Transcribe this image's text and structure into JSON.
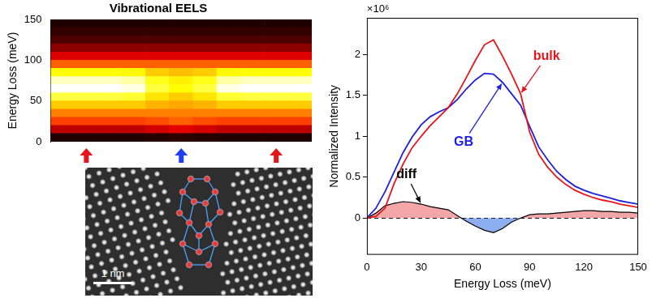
{
  "chart_data": [
    {
      "type": "heatmap",
      "title": "Vibrational EELS",
      "y_label": "Energy Loss (meV)",
      "categories": [
        null,
        null,
        null,
        null,
        null,
        null,
        null,
        null,
        null,
        null,
        null
      ],
      "y_bins": [
        0,
        10,
        20,
        30,
        40,
        50,
        60,
        70,
        80,
        90,
        100,
        110,
        120,
        130,
        140,
        150
      ],
      "cells": [
        [
          0.05,
          0.05,
          0.05,
          0.05,
          0.06,
          0.07,
          0.06,
          0.05,
          0.05,
          0.05,
          0.05
        ],
        [
          0.3,
          0.3,
          0.3,
          0.3,
          0.33,
          0.36,
          0.33,
          0.3,
          0.3,
          0.3,
          0.3
        ],
        [
          0.5,
          0.5,
          0.5,
          0.5,
          0.52,
          0.55,
          0.52,
          0.5,
          0.5,
          0.5,
          0.5
        ],
        [
          0.6,
          0.6,
          0.6,
          0.6,
          0.6,
          0.6,
          0.6,
          0.6,
          0.6,
          0.6,
          0.6
        ],
        [
          0.72,
          0.72,
          0.72,
          0.72,
          0.68,
          0.66,
          0.68,
          0.72,
          0.72,
          0.72,
          0.72
        ],
        [
          0.85,
          0.85,
          0.85,
          0.84,
          0.76,
          0.72,
          0.76,
          0.84,
          0.85,
          0.85,
          0.85
        ],
        [
          1,
          1,
          1,
          0.98,
          0.85,
          0.8,
          0.85,
          0.98,
          1,
          1,
          1
        ],
        [
          0.95,
          0.95,
          0.95,
          0.93,
          0.82,
          0.78,
          0.82,
          0.93,
          0.95,
          0.95,
          0.95
        ],
        [
          0.8,
          0.8,
          0.8,
          0.79,
          0.72,
          0.7,
          0.72,
          0.79,
          0.8,
          0.8,
          0.8
        ],
        [
          0.55,
          0.55,
          0.55,
          0.55,
          0.55,
          0.55,
          0.55,
          0.55,
          0.55,
          0.55,
          0.55
        ],
        [
          0.35,
          0.35,
          0.35,
          0.35,
          0.35,
          0.35,
          0.35,
          0.35,
          0.35,
          0.35,
          0.35
        ],
        [
          0.22,
          0.22,
          0.22,
          0.22,
          0.22,
          0.22,
          0.22,
          0.22,
          0.22,
          0.22,
          0.22
        ],
        [
          0.12,
          0.12,
          0.12,
          0.12,
          0.12,
          0.12,
          0.12,
          0.12,
          0.12,
          0.12,
          0.12
        ],
        [
          0.08,
          0.08,
          0.08,
          0.08,
          0.08,
          0.08,
          0.08,
          0.08,
          0.08,
          0.08,
          0.08
        ],
        [
          0.05,
          0.05,
          0.05,
          0.05,
          0.05,
          0.05,
          0.05,
          0.05,
          0.05,
          0.05,
          0.05
        ]
      ],
      "ylim": [
        0,
        150
      ],
      "yticks": [
        0,
        50,
        100,
        150
      ],
      "tick_labels": "y"
    },
    {
      "type": "line",
      "x_label": "Energy Loss (meV)",
      "y_label": "Normalized Intensity",
      "annotations": [
        "×10⁶"
      ],
      "x": [
        0,
        5,
        10,
        15,
        20,
        25,
        30,
        35,
        40,
        45,
        50,
        55,
        60,
        65,
        70,
        75,
        80,
        85,
        90,
        95,
        100,
        105,
        110,
        115,
        120,
        125,
        130,
        135,
        140,
        145,
        150
      ],
      "series": [
        {
          "name": "bulk",
          "color": "#e8141c",
          "type": "line",
          "values": [
            0,
            0.02,
            0.12,
            0.42,
            0.66,
            0.86,
            1.0,
            1.13,
            1.24,
            1.35,
            1.52,
            1.72,
            1.93,
            2.12,
            2.18,
            1.98,
            1.76,
            1.52,
            1.05,
            0.78,
            0.62,
            0.5,
            0.41,
            0.34,
            0.29,
            0.25,
            0.22,
            0.2,
            0.17,
            0.15,
            0.13
          ]
        },
        {
          "name": "GB",
          "color": "#1f1fe0",
          "type": "line",
          "values": [
            0,
            0.12,
            0.32,
            0.56,
            0.8,
            0.99,
            1.14,
            1.24,
            1.3,
            1.35,
            1.45,
            1.58,
            1.69,
            1.77,
            1.76,
            1.66,
            1.52,
            1.38,
            1.12,
            0.87,
            0.71,
            0.57,
            0.47,
            0.39,
            0.34,
            0.3,
            0.27,
            0.24,
            0.21,
            0.19,
            0.17
          ]
        },
        {
          "name": "diff",
          "color": "#000000",
          "type": "area",
          "values": [
            0,
            0.06,
            0.15,
            0.18,
            0.2,
            0.19,
            0.17,
            0.14,
            0.12,
            0.1,
            0.03,
            -0.04,
            -0.1,
            -0.15,
            -0.18,
            -0.13,
            -0.05,
            0.0,
            0.04,
            0.05,
            0.05,
            0.06,
            0.07,
            0.08,
            0.09,
            0.09,
            0.08,
            0.08,
            0.07,
            0.07,
            0.06
          ]
        }
      ],
      "xlim": [
        0,
        150
      ],
      "xticks": [
        0,
        30,
        60,
        90,
        120,
        150
      ],
      "ylim": [
        -0.45,
        2.45
      ],
      "yticks": [
        0,
        0.5,
        1,
        1.5,
        2
      ]
    }
  ],
  "image": {
    "scale_bar": "1 nm"
  }
}
